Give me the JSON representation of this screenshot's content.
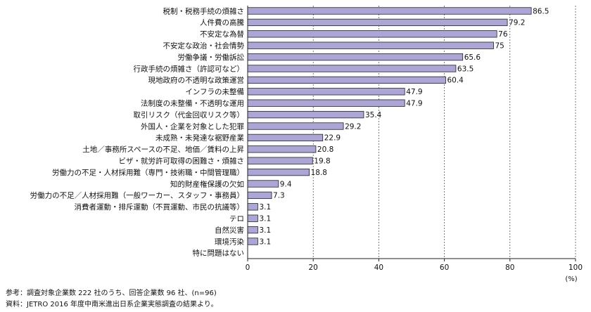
{
  "colors": {
    "bar_fill": "#aca6d6",
    "bar_stroke": "#222222",
    "axis": "#222222",
    "grid": "#444444",
    "text": "#111111"
  },
  "chart_data": {
    "type": "bar",
    "orientation": "horizontal",
    "categories": [
      "税制・税務手続の煩雑さ",
      "人件費の高騰",
      "不安定な為替",
      "不安定な政治・社会情勢",
      "労働争議・労働訴訟",
      "行政手続の煩雑さ（許認可など）",
      "現地政府の不透明な政策運営",
      "インフラの未整備",
      "法制度の未整備・不透明な運用",
      "取引リスク（代金回収リスク等）",
      "外国人・企業を対象とした犯罪",
      "未成熟・未発達な裾野産業",
      "土地／事務所スペースの不足、地価／賃料の上昇",
      "ビザ・就労許可取得の困難さ・煩雑さ",
      "労働力の不足・人材採用難（専門・技術職・中間管理職）",
      "知的財産権保護の欠如",
      "労働力の不足／人材採用難（一般ワーカー、スタッフ・事務員）",
      "消費者運動・排斥運動（不買運動、市民の抗議等）",
      "テロ",
      "自然災害",
      "環境汚染",
      "特に問題はない"
    ],
    "values": [
      86.5,
      79.2,
      76,
      75,
      65.6,
      63.5,
      60.4,
      47.9,
      47.9,
      35.4,
      29.2,
      22.9,
      20.8,
      19.8,
      18.8,
      9.4,
      7.3,
      3.1,
      3.1,
      3.1,
      3.1,
      0
    ],
    "value_labels": [
      "86.5",
      "79.2",
      "76",
      "75",
      "65.6",
      "63.5",
      "60.4",
      "47.9",
      "47.9",
      "35.4",
      "29.2",
      "22.9",
      "20.8",
      "19.8",
      "18.8",
      "9.4",
      "7.3",
      "3.1",
      "3.1",
      "3.1",
      "3.1",
      ""
    ],
    "xlim": [
      0,
      100
    ],
    "xticks": [
      0,
      20,
      40,
      60,
      80,
      100
    ],
    "xtick_labels": [
      "0",
      "20",
      "40",
      "60",
      "80",
      "100"
    ],
    "xlabel": "(%)",
    "grid": "vertical dashed lines at x ticks"
  },
  "notes": {
    "line1": "参考：調査対象企業数 222 社のうち、回答企業数 96 社、(n=96)",
    "line2": "資料：JETRO 2016 年度中南米進出日系企業実態調査の結果より。"
  }
}
